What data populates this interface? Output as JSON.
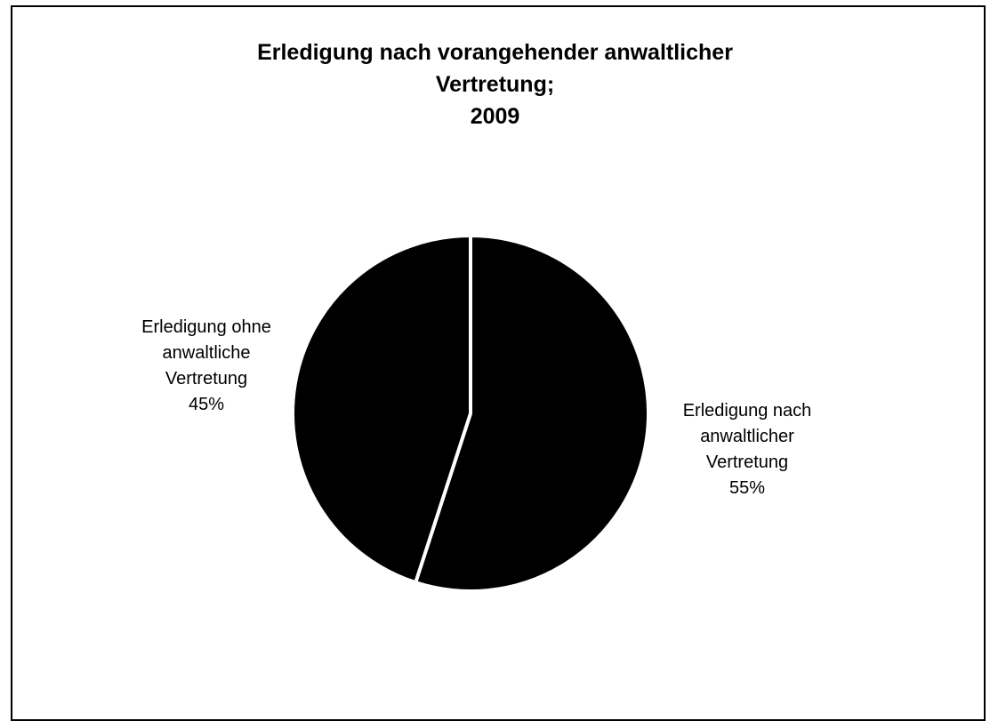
{
  "chart_data": {
    "type": "pie",
    "title": "Erledigung nach vorangehender anwaltlicher Vertretung; 2009",
    "title_lines": [
      "Erledigung nach vorangehender anwaltlicher",
      "Vertretung;",
      "2009"
    ],
    "slices": [
      {
        "label": "Erledigung nach anwaltlicher Vertretung",
        "label_lines": [
          "Erledigung nach",
          "anwaltlicher",
          "Vertretung"
        ],
        "value": 55,
        "value_label": "55%",
        "color": "#000000"
      },
      {
        "label": "Erledigung ohne anwaltliche Vertretung",
        "label_lines": [
          "Erledigung ohne",
          "anwaltliche",
          "Vertretung"
        ],
        "value": 45,
        "value_label": "45%",
        "color": "#000000"
      }
    ],
    "start_angle": "12 o'clock",
    "direction": "clockwise",
    "legend": "none",
    "separator_color": "#ffffff"
  }
}
